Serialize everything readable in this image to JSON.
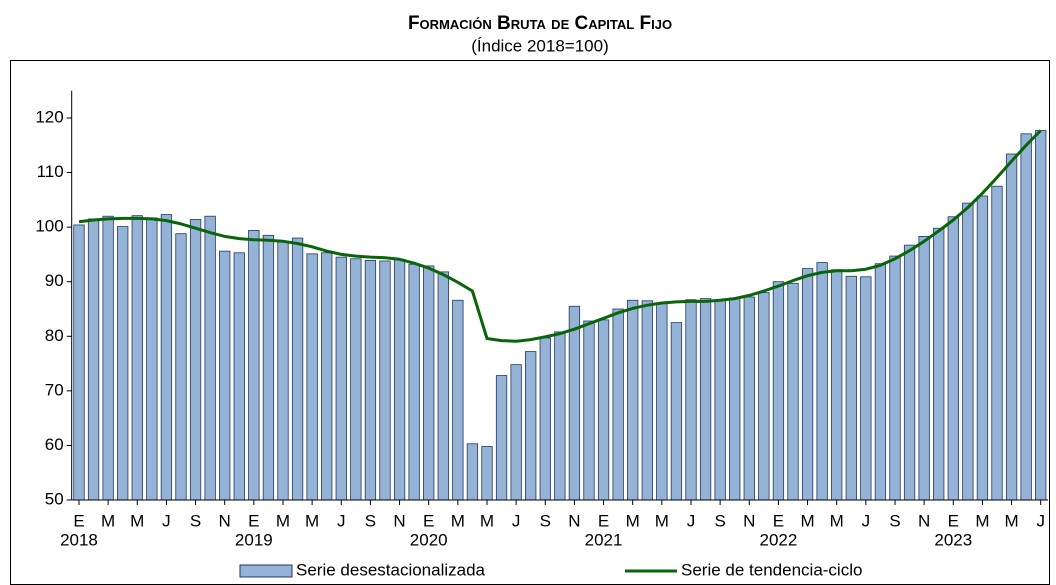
{
  "chart_data": {
    "type": "combo",
    "title": "Formación Bruta de Capital Fijo",
    "subtitle": "(Índice 2018=100)",
    "categories": [
      "E",
      null,
      "M",
      null,
      "M",
      null,
      "J",
      null,
      "S",
      null,
      "N",
      null,
      "E",
      null,
      "M",
      null,
      "M",
      null,
      "J",
      null,
      "S",
      null,
      "N",
      null,
      "E",
      null,
      "M",
      null,
      "M",
      null,
      "J",
      null,
      "S",
      null,
      "N",
      null,
      "E",
      null,
      "M",
      null,
      "M",
      null,
      "J",
      null,
      "S",
      null,
      "N",
      null,
      "E",
      null,
      "M",
      null,
      "M",
      null,
      "J",
      null,
      "S",
      null,
      "N",
      null,
      "E",
      null,
      "M",
      null,
      "M",
      null,
      "J"
    ],
    "year_labels": [
      "2018",
      "2019",
      "2020",
      "2021",
      "2022",
      "2023"
    ],
    "series": [
      {
        "name": "Serie desestacionalizada",
        "type": "bar",
        "color": "#95b3d7",
        "edge": "#1f3864",
        "values": [
          100.4,
          101.5,
          102.0,
          100.1,
          102.1,
          101.7,
          102.3,
          98.8,
          101.4,
          102.0,
          95.6,
          95.3,
          99.4,
          98.5,
          97.3,
          98.0,
          95.1,
          95.3,
          94.5,
          94.2,
          93.9,
          93.8,
          94.1,
          93.2,
          92.9,
          91.8,
          86.6,
          60.3,
          59.8,
          72.8,
          74.8,
          77.2,
          79.7,
          80.8,
          85.5,
          82.8,
          83.0,
          85.0,
          86.6,
          86.5,
          86.0,
          82.5,
          86.7,
          86.9,
          86.6,
          87.0,
          87.2,
          88.0,
          90.0,
          89.7,
          92.4,
          93.5,
          92.2,
          91.0,
          90.9,
          93.3,
          94.7,
          96.7,
          98.3,
          99.8,
          101.9,
          104.4,
          105.7,
          107.5,
          113.4,
          117.1,
          117.7
        ]
      },
      {
        "name": "Serie de tendencia-ciclo",
        "type": "line",
        "color": "#0a640a",
        "values": [
          101.0,
          101.3,
          101.5,
          101.6,
          101.6,
          101.5,
          101.2,
          100.6,
          99.8,
          99.0,
          98.3,
          97.9,
          97.7,
          97.6,
          97.4,
          97.0,
          96.4,
          95.6,
          95.0,
          94.7,
          94.5,
          94.4,
          94.1,
          93.4,
          92.5,
          91.3,
          89.9,
          88.3,
          79.6,
          79.2,
          79.1,
          79.4,
          79.9,
          80.5,
          81.3,
          82.3,
          83.3,
          84.3,
          85.1,
          85.7,
          86.1,
          86.3,
          86.4,
          86.4,
          86.6,
          86.9,
          87.5,
          88.3,
          89.2,
          90.2,
          91.1,
          91.7,
          92.0,
          92.0,
          92.3,
          93.0,
          94.2,
          95.7,
          97.4,
          99.3,
          101.3,
          103.6,
          106.2,
          109.1,
          112.1,
          115.0,
          117.7
        ]
      }
    ],
    "ylim": [
      50,
      125
    ],
    "yticks": [
      50,
      60,
      70,
      80,
      90,
      100,
      110,
      120
    ],
    "grid": false,
    "legend": "bottom"
  }
}
